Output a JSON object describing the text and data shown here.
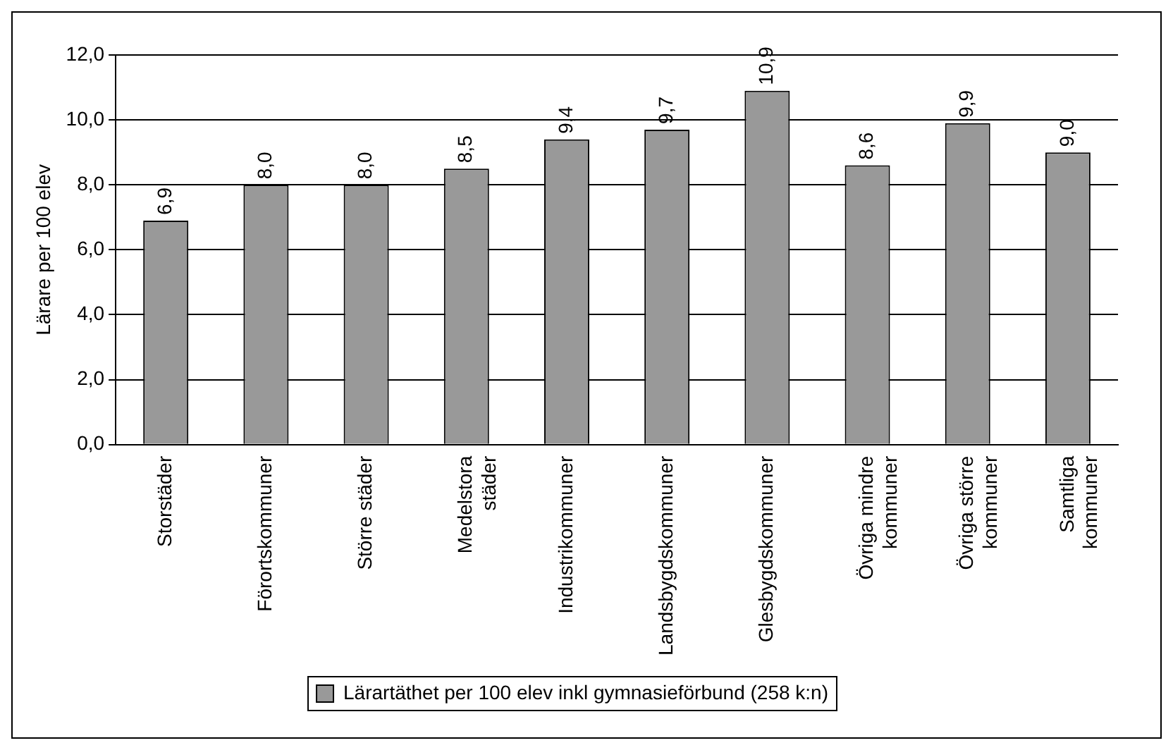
{
  "chart_data": {
    "type": "bar",
    "ylabel": "Lärare per 100 elev",
    "categories": [
      "Storstäder",
      "Förortskommuner",
      "Större städer",
      "Medelstora städer",
      "Industrikommuner",
      "Landsbygdskommuner",
      "Glesbygdskommuner",
      "Övriga mindre kommuner",
      "Övriga större kommuner",
      "Samtliga kommuner"
    ],
    "series": [
      {
        "name": "Lärartäthet per 100 elev inkl gymnasieförbund (258 k:n)",
        "color": "#999999",
        "values": [
          6.9,
          8.0,
          8.0,
          8.5,
          9.4,
          9.7,
          10.9,
          8.6,
          9.9,
          9.0
        ],
        "value_labels": [
          "6,9",
          "8,0",
          "8,0",
          "8,5",
          "9,4",
          "9,7",
          "10,9",
          "8,6",
          "9,9",
          "9,0"
        ]
      }
    ],
    "ylim": [
      0,
      12
    ],
    "yticks": [
      {
        "value": 0,
        "label": "0,0"
      },
      {
        "value": 2,
        "label": "2,0"
      },
      {
        "value": 4,
        "label": "4,0"
      },
      {
        "value": 6,
        "label": "6,0"
      },
      {
        "value": 8,
        "label": "8,0"
      },
      {
        "value": 10,
        "label": "10,0"
      },
      {
        "value": 12,
        "label": "12,0"
      }
    ],
    "grid": "y",
    "legend": "bottom"
  }
}
